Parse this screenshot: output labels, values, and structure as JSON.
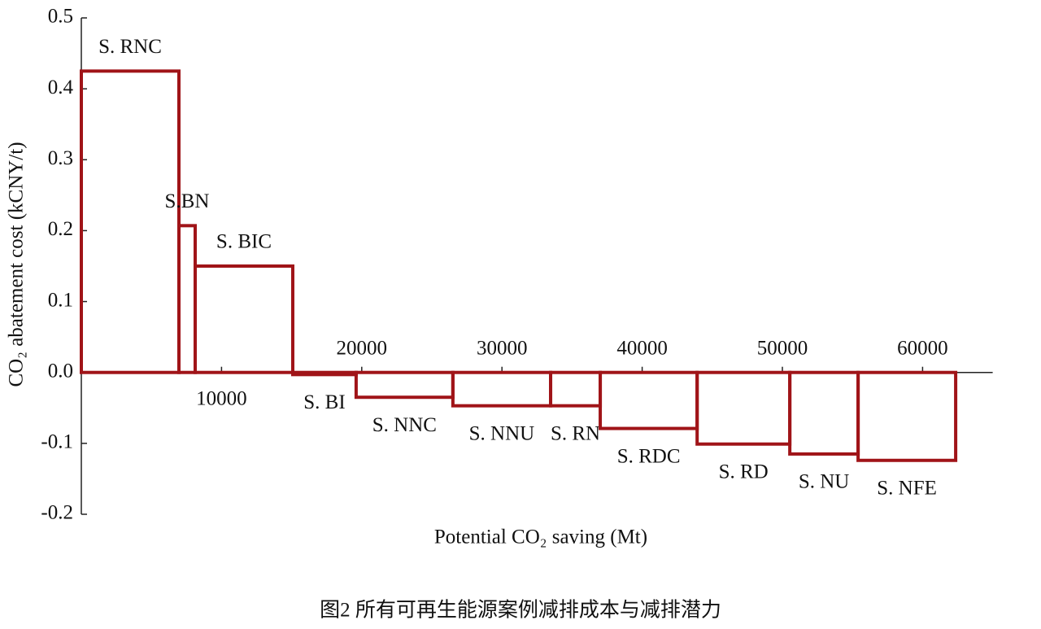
{
  "chart_data": {
    "type": "step",
    "ylabel": "CO₂ abatement cost (kCNY/t)",
    "xlabel": "Potential CO₂ saving (Mt)",
    "caption": "图2 所有可再生能源案例减排成本与减排潜力",
    "categories": [
      "S. RNC",
      "S.BN",
      "S. BIC",
      "S. BI",
      "S. NNC",
      "S. NNU",
      "S. RN",
      "S. RDC",
      "S. RD",
      "S. NU",
      "S. NFE"
    ],
    "bins": [
      0,
      6960,
      8120,
      15080,
      19600,
      26500,
      33470,
      37010,
      43920,
      50530,
      55400,
      62360
    ],
    "values": [
      0.425,
      0.207,
      0.15,
      -0.003,
      -0.035,
      -0.047,
      -0.047,
      -0.079,
      -0.101,
      -0.115,
      -0.124
    ],
    "color": "#a01418",
    "xlim": [
      0,
      65000
    ],
    "xticks": [
      10000,
      20000,
      30000,
      40000,
      50000,
      60000
    ],
    "ylim": [
      -0.2,
      0.5
    ],
    "yticks": [
      -0.2,
      -0.1,
      {
        "value": 0,
        "label": "0.0"
      },
      0.1,
      0.2,
      0.3,
      0.4,
      0.5
    ]
  }
}
